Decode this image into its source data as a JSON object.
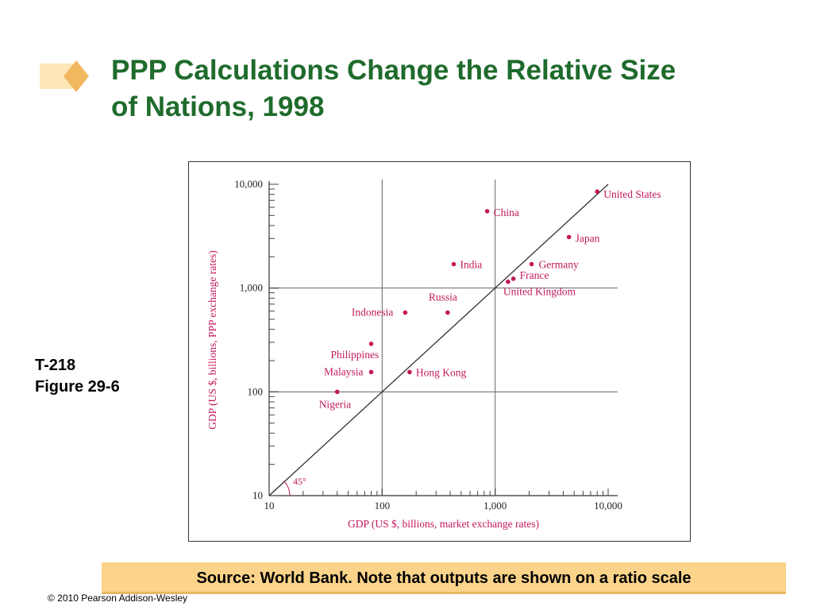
{
  "slide": {
    "title_lines": [
      "PPP Calculations Change the Relative Size",
      "of Nations, 1998"
    ],
    "side_label_lines": [
      "T-218",
      "Figure 29-6"
    ],
    "footnote": "Source: World Bank. Note that outputs are shown on a ratio scale",
    "copyright": "© 2010 Pearson Addison-Wesley",
    "colors": {
      "title": "#1f6b2c",
      "marker_label": "#c2185b",
      "axis_label": "#c2185b",
      "footnote_bg": "#fbd38a",
      "decoration": "#f7c77a"
    }
  },
  "chart_data": {
    "type": "scatter",
    "xscale": "log",
    "yscale": "log",
    "xlim": [
      10,
      10000
    ],
    "ylim": [
      10,
      10000
    ],
    "xlabel": "GDP (US $, billions, market exchange rates)",
    "ylabel": "GDP (US $, billions, PPP exchange rates)",
    "x_ticks": [
      {
        "value": 10,
        "label": "10"
      },
      {
        "value": 100,
        "label": "100"
      },
      {
        "value": 1000,
        "label": "1,000"
      },
      {
        "value": 10000,
        "label": "10,000"
      }
    ],
    "y_ticks": [
      {
        "value": 10,
        "label": "10"
      },
      {
        "value": 100,
        "label": "100"
      },
      {
        "value": 1000,
        "label": "1,000"
      },
      {
        "value": 10000,
        "label": "10,000"
      }
    ],
    "grid_lines": {
      "x": [
        100,
        1000
      ],
      "y": [
        100,
        1000
      ]
    },
    "reference_line": {
      "from": [
        10,
        10
      ],
      "to": [
        10000,
        10000
      ]
    },
    "angle_annotation": "45°",
    "points": [
      {
        "name": "United States",
        "x": 8000,
        "y": 8500
      },
      {
        "name": "China",
        "x": 850,
        "y": 5500
      },
      {
        "name": "Japan",
        "x": 4500,
        "y": 3100
      },
      {
        "name": "India",
        "x": 430,
        "y": 1700
      },
      {
        "name": "Germany",
        "x": 2100,
        "y": 1700
      },
      {
        "name": "France",
        "x": 1450,
        "y": 1230
      },
      {
        "name": "United Kingdom",
        "x": 1300,
        "y": 1150
      },
      {
        "name": "Russia",
        "x": 380,
        "y": 580
      },
      {
        "name": "Indonesia",
        "x": 160,
        "y": 580
      },
      {
        "name": "Philippines",
        "x": 80,
        "y": 290
      },
      {
        "name": "Malaysia",
        "x": 80,
        "y": 155
      },
      {
        "name": "Hong Kong",
        "x": 175,
        "y": 155
      },
      {
        "name": "Nigeria",
        "x": 40,
        "y": 100
      }
    ]
  }
}
